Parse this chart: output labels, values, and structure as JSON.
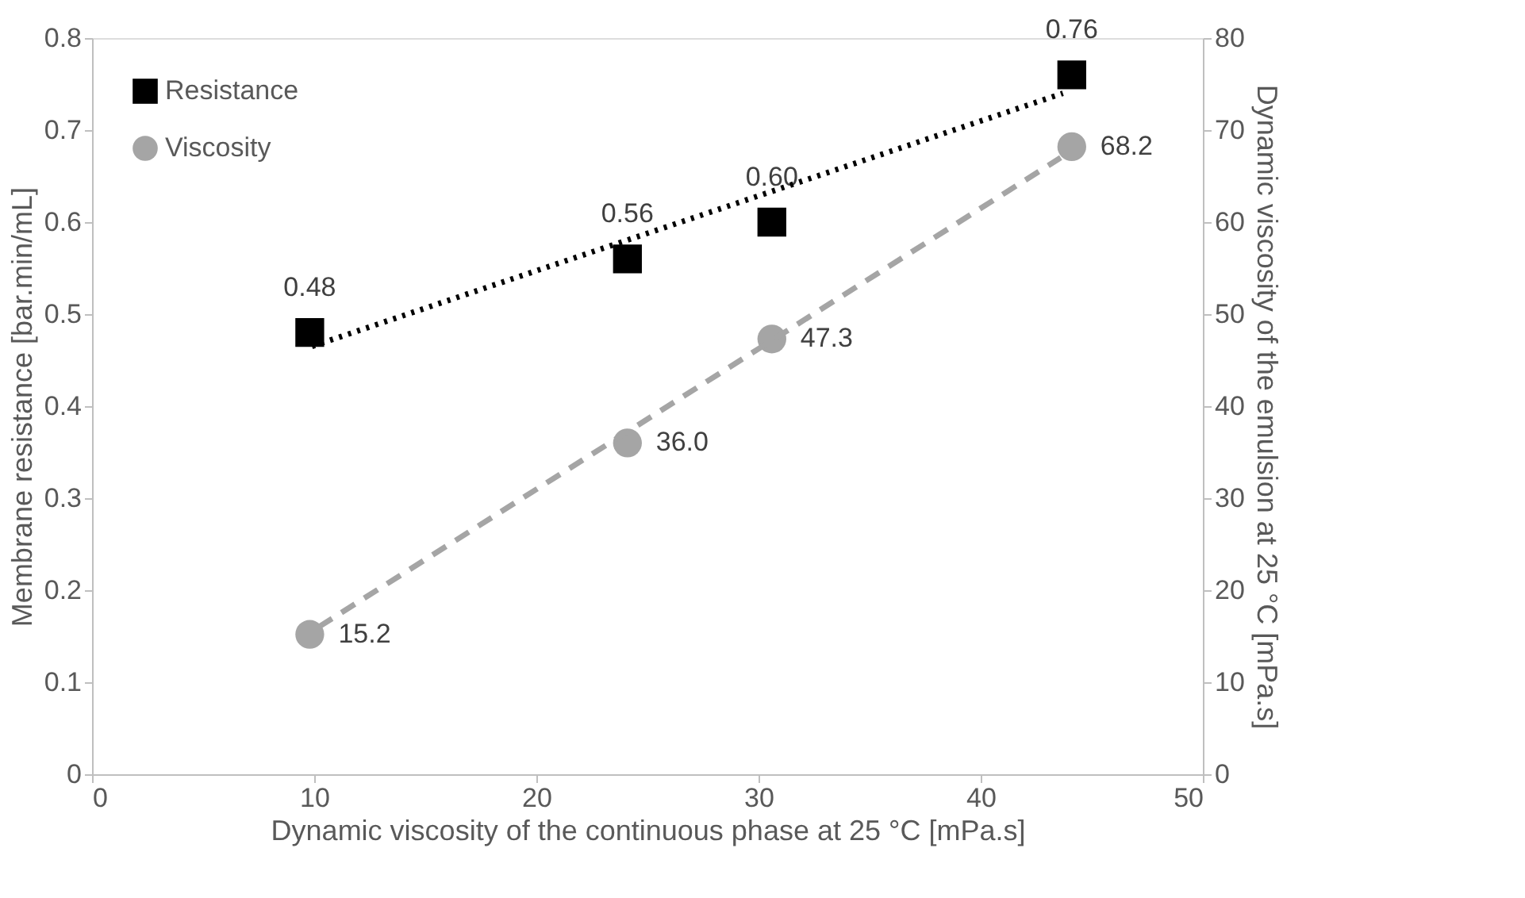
{
  "chart_data": {
    "type": "scatter",
    "xlabel": "Dynamic viscosity of the continuous phase  at 25 °C [mPa.s]",
    "ylabel": "Membrane resistance [bar.min/mL]",
    "y2label": "Dynamic viscosity of the emulsion at 25 °C [mPa.s]",
    "x": [
      9.8,
      24.1,
      30.6,
      44.1
    ],
    "series": [
      {
        "name": "Resistance",
        "color": "#000000",
        "marker": "square",
        "values": [
          0.48,
          0.56,
          0.6,
          0.76
        ],
        "value_labels": [
          "0.48",
          "0.56",
          "0.60",
          "0.76"
        ]
      },
      {
        "name": "Viscosity",
        "color": "#a5a5a5",
        "marker": "circle",
        "axis": "y2",
        "values": [
          15.2,
          36.0,
          47.3,
          68.2
        ],
        "value_labels": [
          "15.2",
          "36.0",
          "47.3",
          "68.2"
        ]
      },
      {
        "type": "line",
        "color": "#000000",
        "line_style": "dotted",
        "marker": "none",
        "x": [
          9.9,
          43.7
        ],
        "values": [
          0.465,
          0.74
        ]
      },
      {
        "type": "line",
        "color": "#a5a5a5",
        "line_style": "dashed",
        "marker": "none",
        "axis": "y2",
        "x": [
          10.2,
          43.6
        ],
        "values": [
          16.0,
          67.0
        ]
      }
    ],
    "xlim": [
      0,
      50
    ],
    "xticks": [
      0,
      10,
      20,
      30,
      40,
      50
    ],
    "ylim": [
      0,
      0.8
    ],
    "yticks": [
      0,
      0.1,
      0.2,
      0.3,
      0.4,
      0.5,
      0.6,
      0.7,
      0.8
    ],
    "y2lim": [
      0,
      80
    ],
    "y2ticks": [
      0,
      10,
      20,
      30,
      40,
      50,
      60,
      70,
      80
    ],
    "legend": "top left",
    "grid": false
  }
}
